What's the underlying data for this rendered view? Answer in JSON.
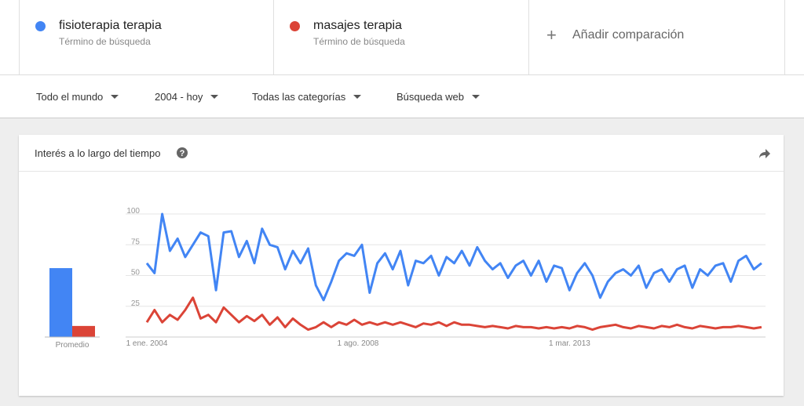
{
  "header": {
    "terms_kind": [
      "Término de búsqueda",
      "Término de búsqueda"
    ],
    "add": "Añadir comparación"
  },
  "filters": [
    "Todo el mundo",
    "2004 - hoy",
    "Todas las categorías",
    "Búsqueda web"
  ],
  "card": {
    "title": "Interés a lo largo del tiempo"
  },
  "chart_data": [
    {
      "type": "bar",
      "xlabel": "Promedio",
      "values": [
        56,
        9
      ],
      "colors": [
        "#4285f4",
        "#db4437"
      ],
      "ylim": [
        0,
        100
      ]
    },
    {
      "type": "line",
      "x": [
        2004,
        2004.167,
        2004.333,
        2004.5,
        2004.667,
        2004.833,
        2005,
        2005.167,
        2005.333,
        2005.5,
        2005.667,
        2005.833,
        2006,
        2006.167,
        2006.333,
        2006.5,
        2006.667,
        2006.833,
        2007,
        2007.167,
        2007.333,
        2007.5,
        2007.667,
        2007.833,
        2008,
        2008.167,
        2008.333,
        2008.5,
        2008.667,
        2008.833,
        2009,
        2009.167,
        2009.333,
        2009.5,
        2009.667,
        2009.833,
        2010,
        2010.167,
        2010.333,
        2010.5,
        2010.667,
        2010.833,
        2011,
        2011.167,
        2011.333,
        2011.5,
        2011.667,
        2011.833,
        2012,
        2012.167,
        2012.333,
        2012.5,
        2012.667,
        2012.833,
        2013,
        2013.167,
        2013.333,
        2013.5,
        2013.667,
        2013.833,
        2014,
        2014.167,
        2014.333,
        2014.5,
        2014.667,
        2014.833,
        2015,
        2015.167,
        2015.333,
        2015.5,
        2015.667,
        2015.833,
        2016,
        2016.167,
        2016.333,
        2016.5,
        2016.667,
        2016.833,
        2017,
        2017.167,
        2017.333
      ],
      "series": [
        {
          "name": "fisioterapia terapia",
          "color": "#4285f4",
          "values": [
            60,
            52,
            100,
            70,
            80,
            65,
            75,
            85,
            82,
            38,
            85,
            86,
            65,
            78,
            60,
            88,
            75,
            73,
            55,
            70,
            60,
            72,
            42,
            30,
            45,
            62,
            68,
            66,
            75,
            36,
            60,
            68,
            55,
            70,
            42,
            62,
            60,
            66,
            50,
            65,
            60,
            70,
            58,
            73,
            62,
            55,
            60,
            48,
            58,
            62,
            50,
            62,
            45,
            58,
            56,
            38,
            52,
            60,
            50,
            32,
            45,
            52,
            55,
            50,
            58,
            40,
            52,
            55,
            45,
            55,
            58,
            40,
            55,
            50,
            58,
            60,
            45,
            62,
            66,
            55,
            60
          ]
        },
        {
          "name": "masajes terapia",
          "color": "#db4437",
          "values": [
            12,
            22,
            12,
            18,
            14,
            22,
            32,
            15,
            18,
            12,
            24,
            18,
            12,
            17,
            13,
            18,
            10,
            16,
            8,
            15,
            10,
            6,
            8,
            12,
            8,
            12,
            10,
            14,
            10,
            12,
            10,
            12,
            10,
            12,
            10,
            8,
            11,
            10,
            12,
            9,
            12,
            10,
            10,
            9,
            8,
            9,
            8,
            7,
            9,
            8,
            8,
            7,
            8,
            7,
            8,
            7,
            9,
            8,
            6,
            8,
            9,
            10,
            8,
            7,
            9,
            8,
            7,
            9,
            8,
            10,
            8,
            7,
            9,
            8,
            7,
            8,
            8,
            9,
            8,
            7,
            8
          ]
        }
      ],
      "xlim": [
        2003.54,
        2017.42
      ],
      "xticks": [
        {
          "value": 2004,
          "label": "1 ene. 2004"
        },
        {
          "value": 2008.58,
          "label": "1 ago. 2008"
        },
        {
          "value": 2013.17,
          "label": "1 mar. 2013"
        }
      ],
      "ylim": [
        0,
        100
      ],
      "yticks": [
        25,
        50,
        75,
        100
      ],
      "grid": true
    }
  ]
}
